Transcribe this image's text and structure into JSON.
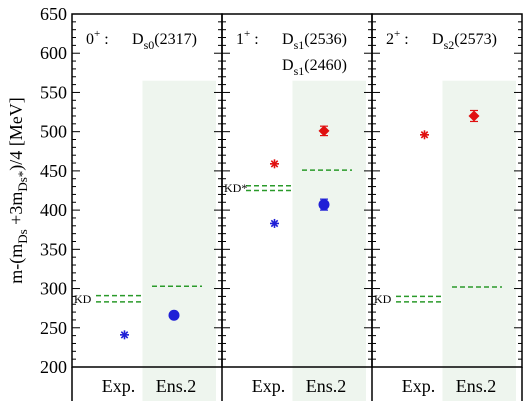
{
  "chart_data": {
    "type": "scatter",
    "ylabel_parts": [
      "m-(m",
      "Ds",
      " +3m",
      "Ds*",
      ")/4 [MeV]"
    ],
    "ylim": [
      200,
      650
    ],
    "yticks": [
      "200",
      "250",
      "300",
      "350",
      "400",
      "450",
      "500",
      "550",
      "600",
      "650"
    ],
    "categories": [
      "Exp.",
      "Ens.2"
    ],
    "colors": {
      "exp_star": "#1f1fd6",
      "red": "#e01010",
      "blue": "#1f1fd6",
      "threshold": "#2a9a2a",
      "shade": "#eef5ee"
    },
    "panels": [
      {
        "jp_main": "0",
        "jp_sup": "+",
        "states": [
          {
            "main": "D",
            "sub": "s0",
            "rest": "(2317)"
          }
        ],
        "points": [
          {
            "x": "Exp.",
            "y": 241,
            "marker": "star",
            "color": "blue"
          },
          {
            "x": "Ens.2",
            "y": 266,
            "err": 3,
            "marker": "circle",
            "color": "blue"
          }
        ],
        "thresholds": [
          {
            "label": "KD",
            "ys": [
              291,
              283
            ],
            "side": "Exp."
          },
          {
            "label": "",
            "ys": [
              303
            ],
            "side": "Ens.2"
          }
        ]
      },
      {
        "jp_main": "1",
        "jp_sup": "+",
        "states": [
          {
            "main": "D",
            "sub": "s1",
            "rest": "(2536)"
          },
          {
            "main": "D",
            "sub": "s1",
            "rest": "(2460)"
          }
        ],
        "points": [
          {
            "x": "Exp.",
            "y": 459,
            "marker": "star",
            "color": "red"
          },
          {
            "x": "Exp.",
            "y": 383,
            "marker": "star",
            "color": "blue"
          },
          {
            "x": "Ens.2",
            "y": 501,
            "err": 6,
            "marker": "diamond",
            "color": "red"
          },
          {
            "x": "Ens.2",
            "y": 407,
            "err": 7,
            "marker": "circle",
            "color": "blue"
          }
        ],
        "thresholds": [
          {
            "label": "KD*",
            "ys": [
              431,
              425
            ],
            "side": "Exp."
          },
          {
            "label": "",
            "ys": [
              451
            ],
            "side": "Ens.2"
          }
        ]
      },
      {
        "jp_main": "2",
        "jp_sup": "+",
        "states": [
          {
            "main": "D",
            "sub": "s2",
            "rest": "(2573)"
          }
        ],
        "points": [
          {
            "x": "Exp.",
            "y": 496,
            "marker": "star",
            "color": "red"
          },
          {
            "x": "Ens.2",
            "y": 520,
            "err": 7,
            "marker": "diamond",
            "color": "red"
          }
        ],
        "thresholds": [
          {
            "label": "KD",
            "ys": [
              290,
              283
            ],
            "side": "Exp."
          },
          {
            "label": "",
            "ys": [
              302
            ],
            "side": "Ens.2"
          }
        ]
      }
    ]
  }
}
